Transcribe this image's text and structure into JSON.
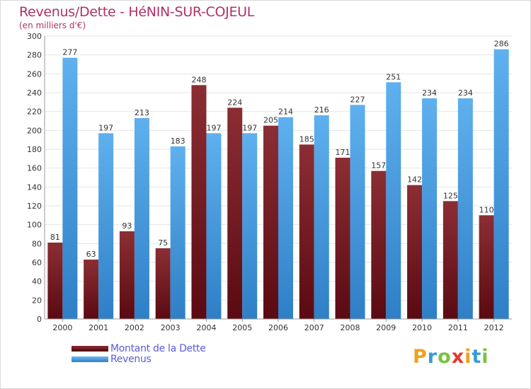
{
  "chart_data": {
    "type": "bar",
    "title": "Revenus/Dette - HéNIN-SUR-COJEUL",
    "subtitle": "(en milliers d'€)",
    "categories": [
      "2000",
      "2001",
      "2002",
      "2003",
      "2004",
      "2005",
      "2006",
      "2007",
      "2008",
      "2009",
      "2010",
      "2011",
      "2012"
    ],
    "series": [
      {
        "name": "Montant de la Dette",
        "values": [
          81,
          63,
          93,
          75,
          248,
          224,
          205,
          185,
          171,
          157,
          142,
          125,
          110
        ]
      },
      {
        "name": "Revenus",
        "values": [
          277,
          197,
          213,
          183,
          197,
          197,
          214,
          216,
          227,
          251,
          234,
          234,
          286
        ]
      }
    ],
    "ylim": [
      0,
      300
    ],
    "yticks": [
      0,
      20,
      40,
      60,
      80,
      100,
      120,
      140,
      160,
      180,
      200,
      220,
      240,
      260,
      280,
      300
    ],
    "grid": true,
    "legend": "bottom-left"
  },
  "colors": {
    "debt_top": "#8b2e34",
    "debt_bottom": "#5a0a12",
    "rev_top": "#5fb0ee",
    "rev_bottom": "#2f7fc7",
    "title": "#b0306a",
    "legend_text": "#5b5bd9"
  },
  "logo": {
    "letters": [
      "P",
      "r",
      "o",
      "x",
      "i",
      "t",
      "i"
    ]
  }
}
